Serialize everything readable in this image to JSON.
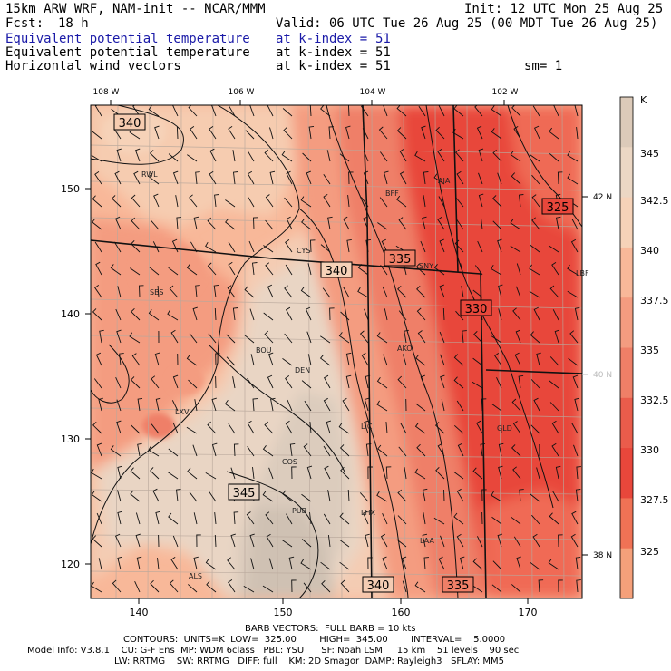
{
  "header": {
    "model": "15km ARW WRF, NAM-init -- NCAR/MMM",
    "init": "Init: 12 UTC Mon 25 Aug 25",
    "fcst_label": "Fcst:",
    "fcst_value": "18 h",
    "valid": "Valid: 06 UTC Tue 26 Aug 25 (00 MDT Tue 26 Aug 25)",
    "fields": [
      {
        "name": "Equivalent potential temperature",
        "level": "at k-index =",
        "value": "51",
        "color": "#1a1aa8"
      },
      {
        "name": "Equivalent potential temperature",
        "level": "at k-index =",
        "value": "51",
        "color": "#000000"
      },
      {
        "name": "Horizontal wind vectors",
        "level": "at k-index =",
        "value": "51",
        "color": "#000000"
      }
    ],
    "smoothing": "sm= 1"
  },
  "map": {
    "top_lon_labels": [
      "108 W",
      "106 W",
      "104 W",
      "102 W"
    ],
    "right_lat_labels": [
      "42 N",
      "40 N",
      "38 N"
    ],
    "left_grid_labels": [
      "150",
      "140",
      "130",
      "120"
    ],
    "bottom_grid_labels": [
      "140",
      "150",
      "160",
      "170"
    ],
    "contour_labels": [
      "340",
      "325",
      "335",
      "340",
      "330",
      "345",
      "340",
      "335"
    ],
    "cities": [
      "RWL",
      "BFF",
      "AIA",
      "CYS",
      "SNY",
      "LBF",
      "SBS",
      "AKO",
      "BOU",
      "DEN",
      "LXV",
      "LIC",
      "GLD",
      "COS",
      "PUB",
      "LHX",
      "LAA",
      "ALS"
    ]
  },
  "colorbar": {
    "unit": "K",
    "labels": [
      "345",
      "342.5",
      "340",
      "337.5",
      "335",
      "332.5",
      "330",
      "327.5",
      "325"
    ],
    "colors": [
      "#dccab9",
      "#ecd7c4",
      "#f6d2b8",
      "#f8b899",
      "#f49c80",
      "#ef7f67",
      "#ea5c4b",
      "#e8473b",
      "#f07255",
      "#f5a07a"
    ]
  },
  "footer": {
    "barb_title": "BARB VECTORS:",
    "barb_desc": "FULL BARB = 10 kts",
    "contours": "CONTOURS:  UNITS=K  LOW=  325.00        HIGH=  345.00        INTERVAL=    5.0000",
    "model_info": "Model Info: V3.8.1    CU: G-F Ens  MP: WDM 6class   PBL: YSU      SF: Noah LSM     15 km    51 levels    90 sec",
    "model_info2": "LW: RRTMG    SW: RRTMG   DIFF: full    KM: 2D Smagor  DAMP: Rayleigh3   SFLAY: MM5"
  }
}
